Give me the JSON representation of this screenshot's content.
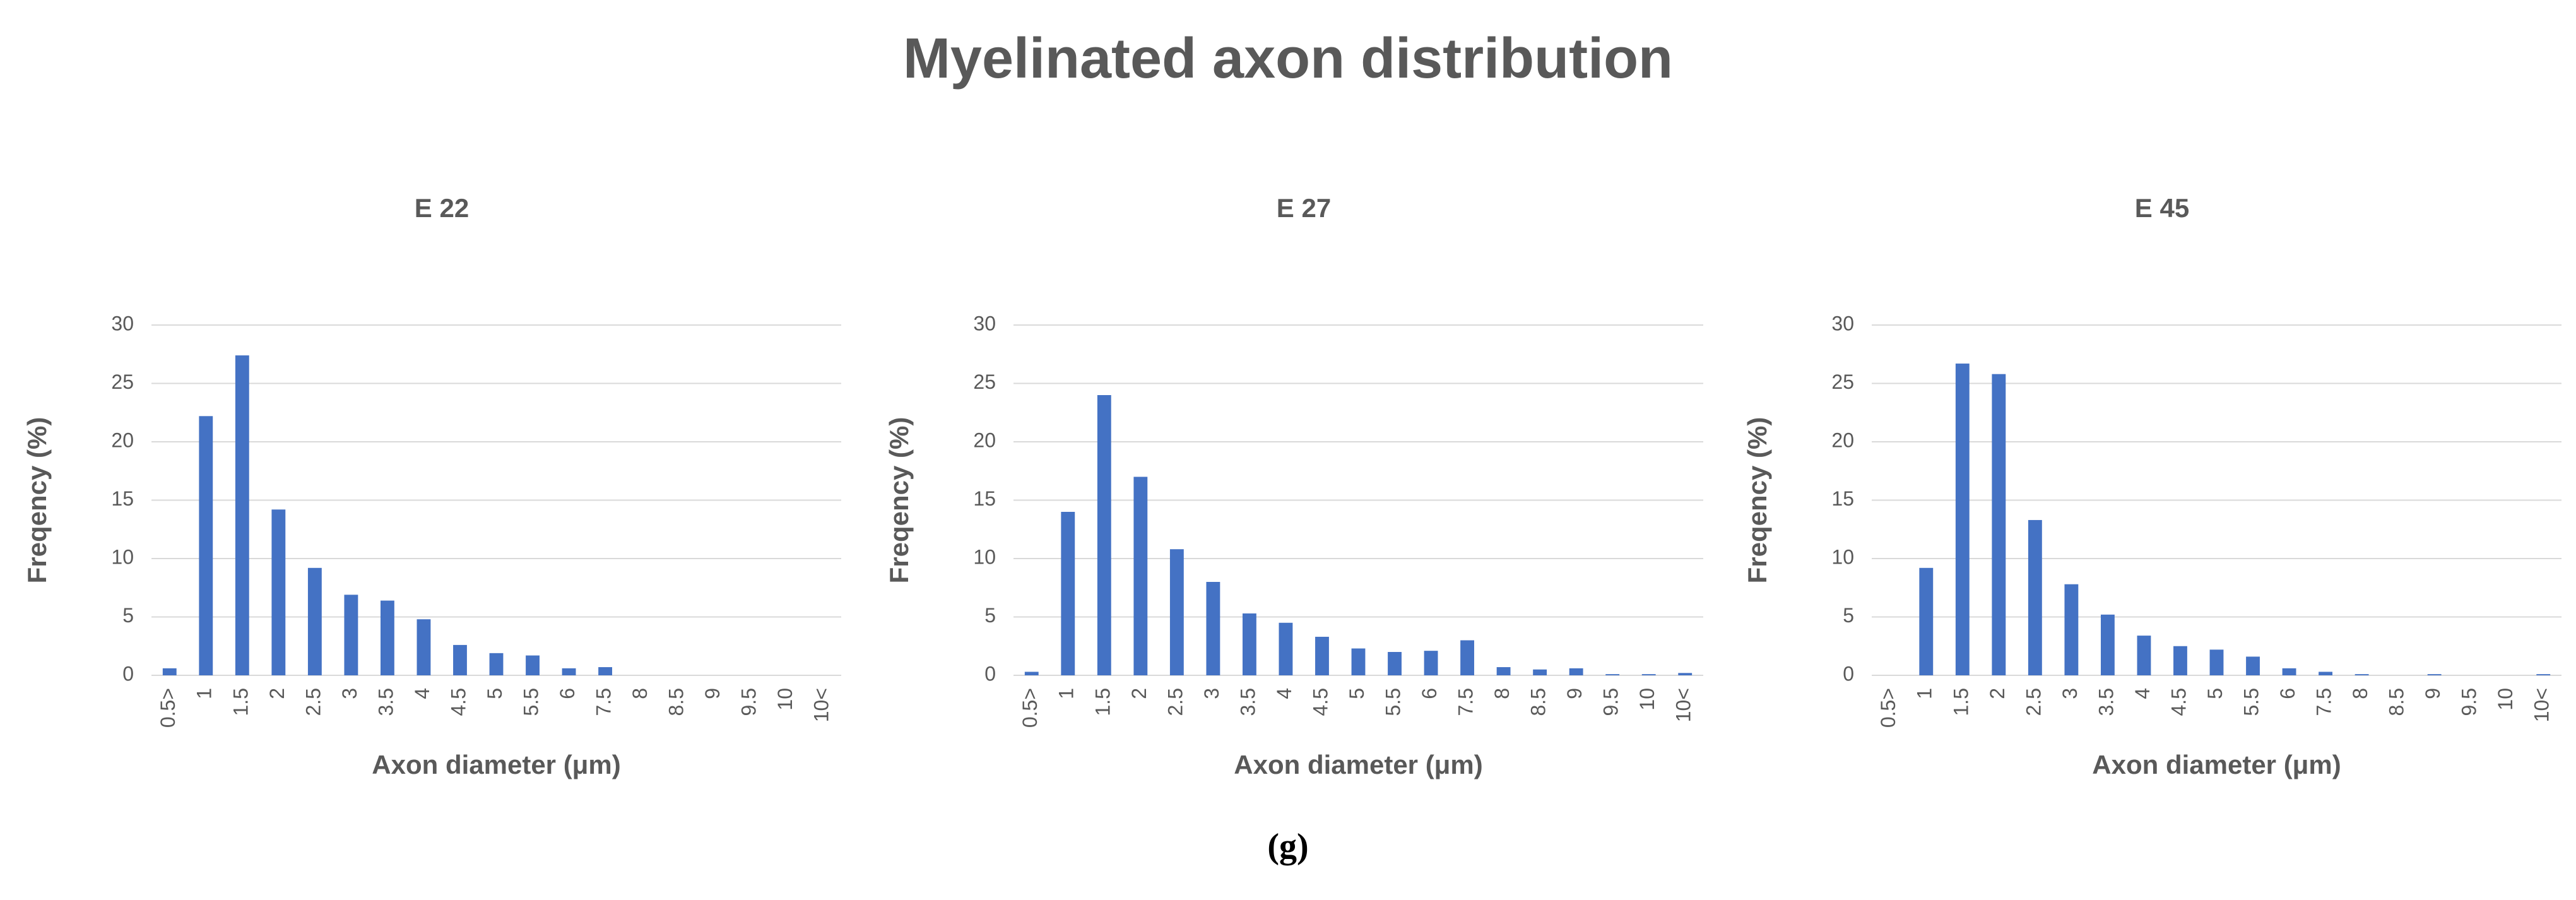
{
  "title": "Myelinated axon distribution",
  "caption": "(g)",
  "chart_data": [
    {
      "type": "bar",
      "title": "E 22",
      "x_label": "Axon diameter (μm)",
      "y_label": "Freqency (%)",
      "categories": [
        "0.5>",
        "1",
        "1.5",
        "2",
        "2.5",
        "3",
        "3.5",
        "4",
        "4.5",
        "5",
        "5.5",
        "6",
        "7.5",
        "8",
        "8.5",
        "9",
        "9.5",
        "10",
        "10<"
      ],
      "values": [
        0.6,
        22.2,
        27.4,
        14.2,
        9.2,
        6.9,
        6.4,
        4.8,
        2.6,
        1.9,
        1.7,
        0.6,
        0.7,
        0,
        0,
        0,
        0,
        0,
        0
      ],
      "color": "#4472c4",
      "ylim": [
        0,
        30
      ],
      "yticks": [
        0,
        5,
        10,
        15,
        20,
        25,
        30
      ],
      "grid": true
    },
    {
      "type": "bar",
      "title": "E 27",
      "x_label": "Axon diameter (μm)",
      "y_label": "Freqency (%)",
      "categories": [
        "0.5>",
        "1",
        "1.5",
        "2",
        "2.5",
        "3",
        "3.5",
        "4",
        "4.5",
        "5",
        "5.5",
        "6",
        "7.5",
        "8",
        "8.5",
        "9",
        "9.5",
        "10",
        "10<"
      ],
      "values": [
        0.3,
        14,
        24,
        17,
        10.8,
        8,
        5.3,
        4.5,
        3.3,
        2.3,
        2,
        2.1,
        3,
        0.7,
        0.5,
        0.6,
        0.1,
        0.1,
        0.2
      ],
      "color": "#4472c4",
      "ylim": [
        0,
        30
      ],
      "yticks": [
        0,
        5,
        10,
        15,
        20,
        25,
        30
      ],
      "grid": true
    },
    {
      "type": "bar",
      "title": "E 45",
      "x_label": "Axon diameter (μm)",
      "y_label": "Freqency (%)",
      "categories": [
        "0.5>",
        "1",
        "1.5",
        "2",
        "2.5",
        "3",
        "3.5",
        "4",
        "4.5",
        "5",
        "5.5",
        "6",
        "7.5",
        "8",
        "8.5",
        "9",
        "9.5",
        "10",
        "10<"
      ],
      "values": [
        0,
        9.2,
        26.7,
        25.8,
        13.3,
        7.8,
        5.2,
        3.4,
        2.5,
        2.2,
        1.6,
        0.6,
        0.3,
        0.1,
        0,
        0.1,
        0,
        0,
        0.1
      ],
      "color": "#4472c4",
      "ylim": [
        0,
        30
      ],
      "yticks": [
        0,
        5,
        10,
        15,
        20,
        25,
        30
      ],
      "grid": true
    }
  ]
}
